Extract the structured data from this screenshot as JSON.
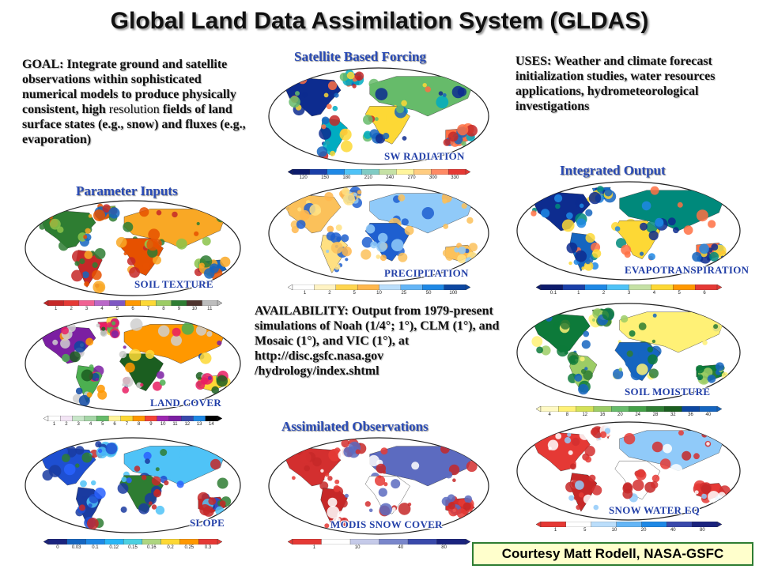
{
  "title": "Global Land Data Assimilation System (GLDAS)",
  "goal": {
    "lead": "GOAL:",
    "text1": " Integrate ground and satellite observations within sophisticated numerical models to produce physically consistent, high ",
    "plain": "resolution",
    "text2": " fields of land surface states (e.g., snow) and fluxes (e.g., evaporation)"
  },
  "uses": {
    "lead": "USES:",
    "text": " Weather and climate forecast initialization studies, water resources applications, hydrometeorological investigations"
  },
  "availability": {
    "lead": "AVAILABILITY:",
    "text": " Output from 1979-present simulations of Noah (1/4°; 1°), CLM (1°), and Mosaic (1°), and VIC (1°), at http://disc.gsfc.nasa.gov /hydrology/index.shtml"
  },
  "sections": {
    "parameter_inputs": "Parameter Inputs",
    "satellite_forcing": "Satellite Based Forcing",
    "integrated_output": "Integrated Output",
    "assimilated_observations": "Assimilated Observations"
  },
  "maps": {
    "soil_texture": {
      "label": "SOIL TEXTURE",
      "ticks": [
        "1",
        "2",
        "3",
        "4",
        "5",
        "6",
        "7",
        "8",
        "9",
        "10",
        "11"
      ]
    },
    "land_cover": {
      "label": "LAND COVER",
      "ticks": [
        "1",
        "2",
        "3",
        "4",
        "5",
        "6",
        "7",
        "8",
        "9",
        "10",
        "11",
        "12",
        "13",
        "14"
      ]
    },
    "slope": {
      "label": "SLOPE",
      "ticks": [
        "0",
        "0.03",
        "0.1",
        "0.12",
        "0.15",
        "0.16",
        "0.2",
        "0.25",
        "0.3"
      ]
    },
    "sw_radiation": {
      "label": "SW RADIATION",
      "ticks": [
        "120",
        "150",
        "180",
        "210",
        "240",
        "270",
        "300",
        "330"
      ]
    },
    "precipitation": {
      "label": "PRECIPITATION",
      "ticks": [
        "1",
        "2",
        "5",
        "10",
        "25",
        "50",
        "100"
      ]
    },
    "modis_snow_cover": {
      "label": "MODIS SNOW COVER",
      "ticks": [
        "1",
        "10",
        "40",
        "80"
      ]
    },
    "evapotranspiration": {
      "label": "EVAPOTRANSPIRATION",
      "ticks": [
        "0.1",
        "1",
        "2",
        "3",
        "4",
        "5",
        "6"
      ]
    },
    "soil_moisture": {
      "label": "SOIL MOISTURE",
      "ticks": [
        "4",
        "8",
        "12",
        "16",
        "20",
        "24",
        "28",
        "32",
        "36",
        "40"
      ]
    },
    "snow_water_eq": {
      "label": "SNOW WATER EQ",
      "ticks": [
        "1",
        "5",
        "10",
        "20",
        "40",
        "80"
      ]
    }
  },
  "credit": "Courtesy Matt Rodell, NASA-GSFC"
}
